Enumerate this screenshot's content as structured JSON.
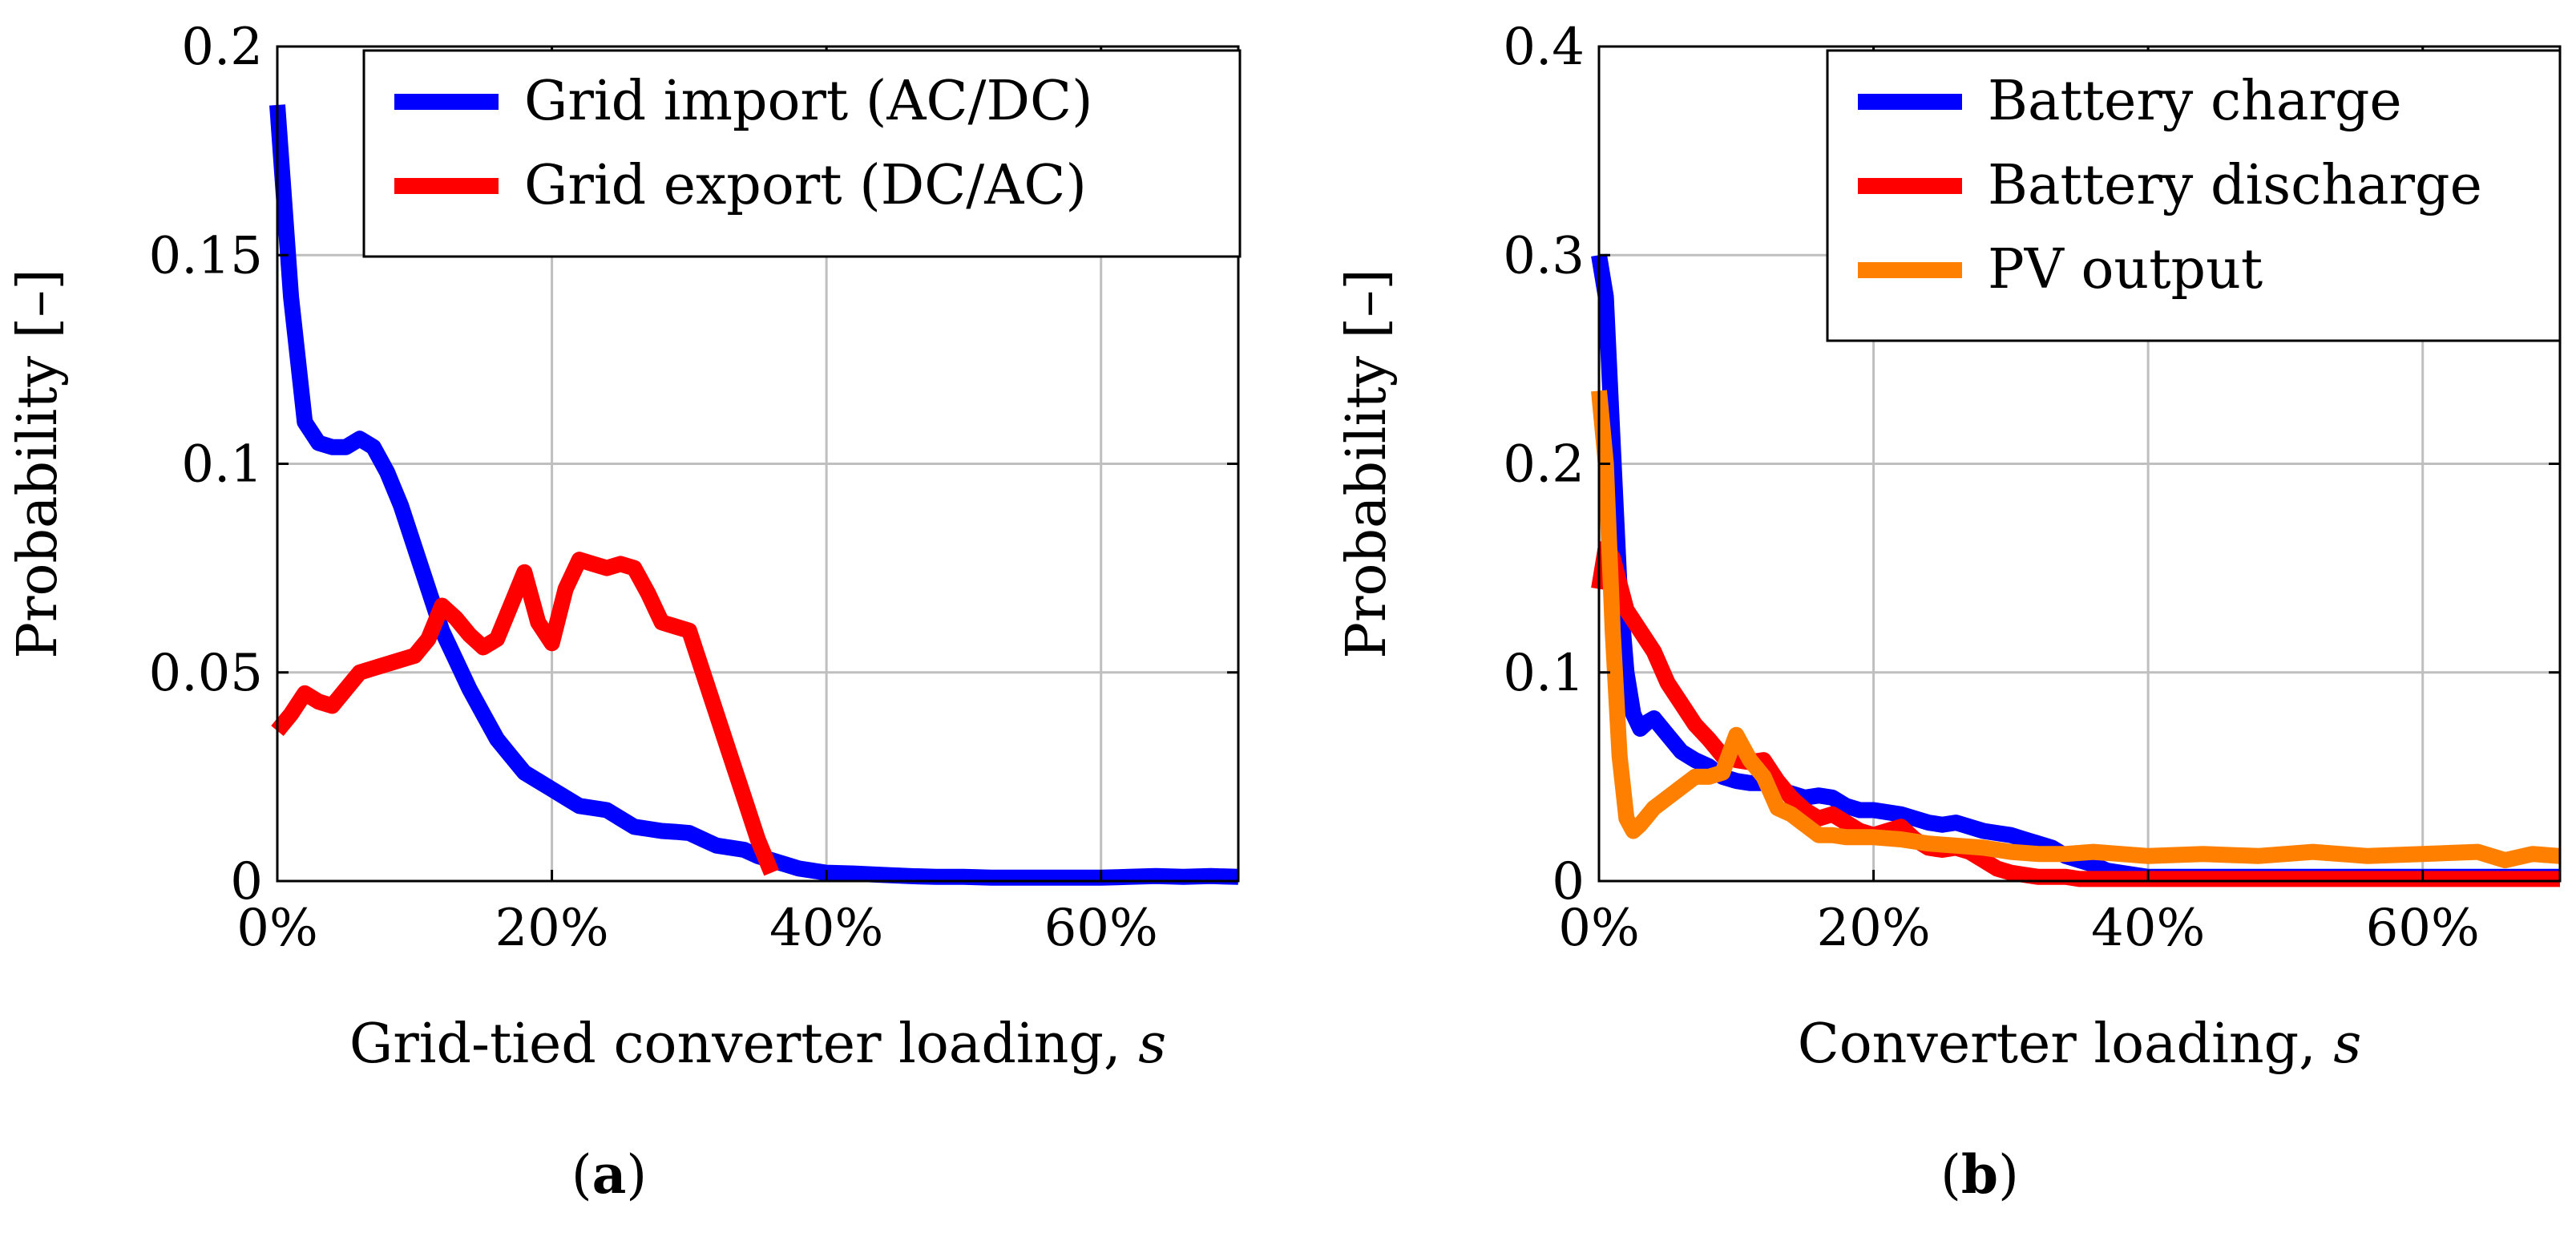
{
  "chart_data": [
    {
      "type": "line",
      "panel": "a",
      "caption_letter": "a",
      "caption_open": "(",
      "caption_close": ")",
      "title": "",
      "xlabel": "Grid-tied converter loading,",
      "xlabel_var": "s",
      "ylabel": "Probability [–]",
      "xlim": [
        0,
        70
      ],
      "ylim": [
        0,
        0.2
      ],
      "xticks": [
        0,
        20,
        40,
        60
      ],
      "xtick_labels": [
        "0%",
        "20%",
        "40%",
        "60%"
      ],
      "yticks": [
        0,
        0.05,
        0.1,
        0.15,
        0.2
      ],
      "ytick_labels": [
        "0",
        "0.05",
        "0.1",
        "0.15",
        "0.2"
      ],
      "grid": true,
      "legend_position": "top-right",
      "series": [
        {
          "name": "Grid import (AC/DC)",
          "color": "#0000ff",
          "x": [
            0,
            1,
            2,
            3,
            4,
            5,
            6,
            7,
            8,
            9,
            10,
            11,
            12,
            13,
            14,
            15,
            16,
            17,
            18,
            19,
            20,
            21,
            22,
            23,
            24,
            25,
            26,
            27,
            28,
            29,
            30,
            31,
            32,
            33,
            34,
            35,
            36,
            37,
            38,
            39,
            40,
            42,
            44,
            46,
            48,
            50,
            52,
            54,
            56,
            58,
            60,
            62,
            64,
            66,
            68,
            70
          ],
          "y": [
            0.186,
            0.14,
            0.11,
            0.105,
            0.104,
            0.104,
            0.106,
            0.104,
            0.098,
            0.09,
            0.08,
            0.07,
            0.06,
            0.053,
            0.046,
            0.04,
            0.034,
            0.03,
            0.026,
            0.024,
            0.022,
            0.02,
            0.018,
            0.0175,
            0.017,
            0.015,
            0.013,
            0.0125,
            0.012,
            0.0118,
            0.0115,
            0.01,
            0.0085,
            0.008,
            0.0075,
            0.006,
            0.005,
            0.004,
            0.003,
            0.0025,
            0.002,
            0.0018,
            0.0015,
            0.0012,
            0.001,
            0.001,
            0.0008,
            0.0008,
            0.0008,
            0.0008,
            0.0008,
            0.001,
            0.0012,
            0.001,
            0.0012,
            0.001
          ]
        },
        {
          "name": "Grid export (DC/AC)",
          "color": "#ff0000",
          "x": [
            0,
            1,
            2,
            3,
            4,
            5,
            6,
            7,
            8,
            9,
            10,
            11,
            12,
            13,
            14,
            15,
            16,
            17,
            18,
            19,
            20,
            21,
            22,
            23,
            24,
            25,
            26,
            27,
            28,
            29,
            30,
            31,
            32,
            33,
            34,
            35,
            36
          ],
          "y": [
            0.036,
            0.04,
            0.045,
            0.043,
            0.042,
            0.046,
            0.05,
            0.051,
            0.052,
            0.053,
            0.054,
            0.058,
            0.066,
            0.063,
            0.059,
            0.056,
            0.058,
            0.066,
            0.074,
            0.062,
            0.057,
            0.07,
            0.077,
            0.076,
            0.075,
            0.076,
            0.075,
            0.069,
            0.062,
            0.061,
            0.06,
            0.05,
            0.04,
            0.03,
            0.02,
            0.01,
            0.002
          ]
        }
      ]
    },
    {
      "type": "line",
      "panel": "b",
      "caption_letter": "b",
      "caption_open": "(",
      "caption_close": ")",
      "title": "",
      "xlabel": "Converter loading,",
      "xlabel_var": "s",
      "ylabel": "Probability [–]",
      "xlim": [
        0,
        70
      ],
      "ylim": [
        0,
        0.4
      ],
      "xticks": [
        0,
        20,
        40,
        60
      ],
      "xtick_labels": [
        "0%",
        "20%",
        "40%",
        "60%"
      ],
      "yticks": [
        0,
        0.1,
        0.2,
        0.3,
        0.4
      ],
      "ytick_labels": [
        "0",
        "0.1",
        "0.2",
        "0.3",
        "0.4"
      ],
      "grid": true,
      "legend_position": "top-right",
      "series": [
        {
          "name": "Battery charge",
          "color": "#0000ff",
          "x": [
            0,
            0.5,
            1,
            1.5,
            2,
            2.5,
            3,
            3.5,
            4,
            5,
            6,
            7,
            8,
            9,
            10,
            11,
            12,
            13,
            14,
            15,
            16,
            17,
            18,
            19,
            20,
            21,
            22,
            23,
            24,
            25,
            26,
            27,
            28,
            29,
            30,
            31,
            32,
            33,
            34,
            35,
            36,
            37,
            38,
            39,
            40,
            45,
            50,
            55,
            60,
            65,
            70
          ],
          "y": [
            0.3,
            0.28,
            0.21,
            0.14,
            0.1,
            0.08,
            0.073,
            0.076,
            0.078,
            0.07,
            0.062,
            0.058,
            0.055,
            0.05,
            0.048,
            0.047,
            0.047,
            0.044,
            0.042,
            0.04,
            0.041,
            0.04,
            0.036,
            0.034,
            0.034,
            0.033,
            0.032,
            0.03,
            0.028,
            0.027,
            0.028,
            0.026,
            0.024,
            0.023,
            0.022,
            0.02,
            0.018,
            0.016,
            0.012,
            0.01,
            0.008,
            0.005,
            0.004,
            0.003,
            0.002,
            0.002,
            0.002,
            0.002,
            0.002,
            0.002,
            0.002
          ]
        },
        {
          "name": "Battery discharge",
          "color": "#ff0000",
          "x": [
            0,
            0.5,
            1,
            2,
            3,
            4,
            5,
            6,
            7,
            8,
            9,
            10,
            11,
            12,
            13,
            14,
            15,
            16,
            17,
            18,
            19,
            20,
            21,
            22,
            23,
            24,
            25,
            26,
            27,
            28,
            29,
            30,
            31,
            32,
            33,
            34,
            35,
            40,
            45,
            50,
            55,
            60,
            65,
            70
          ],
          "y": [
            0.14,
            0.16,
            0.155,
            0.13,
            0.12,
            0.11,
            0.095,
            0.085,
            0.075,
            0.068,
            0.06,
            0.058,
            0.057,
            0.058,
            0.048,
            0.04,
            0.034,
            0.03,
            0.032,
            0.028,
            0.024,
            0.022,
            0.024,
            0.026,
            0.02,
            0.016,
            0.015,
            0.016,
            0.014,
            0.01,
            0.006,
            0.004,
            0.003,
            0.002,
            0.002,
            0.002,
            0.001,
            0.001,
            0.001,
            0.001,
            0.001,
            0.001,
            0.001,
            0.001
          ]
        },
        {
          "name": "PV output",
          "color": "#ff8000",
          "x": [
            0,
            0.5,
            1,
            1.5,
            2,
            2.5,
            3,
            4,
            5,
            6,
            7,
            8,
            9,
            10,
            11,
            12,
            13,
            14,
            15,
            16,
            17,
            18,
            19,
            20,
            22,
            24,
            26,
            28,
            30,
            32,
            34,
            36,
            38,
            40,
            44,
            48,
            52,
            56,
            60,
            64,
            66,
            68,
            70
          ],
          "y": [
            0.235,
            0.2,
            0.12,
            0.06,
            0.03,
            0.024,
            0.027,
            0.035,
            0.04,
            0.045,
            0.05,
            0.05,
            0.052,
            0.07,
            0.058,
            0.05,
            0.035,
            0.032,
            0.027,
            0.022,
            0.022,
            0.021,
            0.021,
            0.021,
            0.02,
            0.018,
            0.017,
            0.016,
            0.014,
            0.013,
            0.013,
            0.014,
            0.013,
            0.012,
            0.013,
            0.012,
            0.014,
            0.012,
            0.013,
            0.014,
            0.01,
            0.013,
            0.012
          ]
        }
      ]
    }
  ]
}
